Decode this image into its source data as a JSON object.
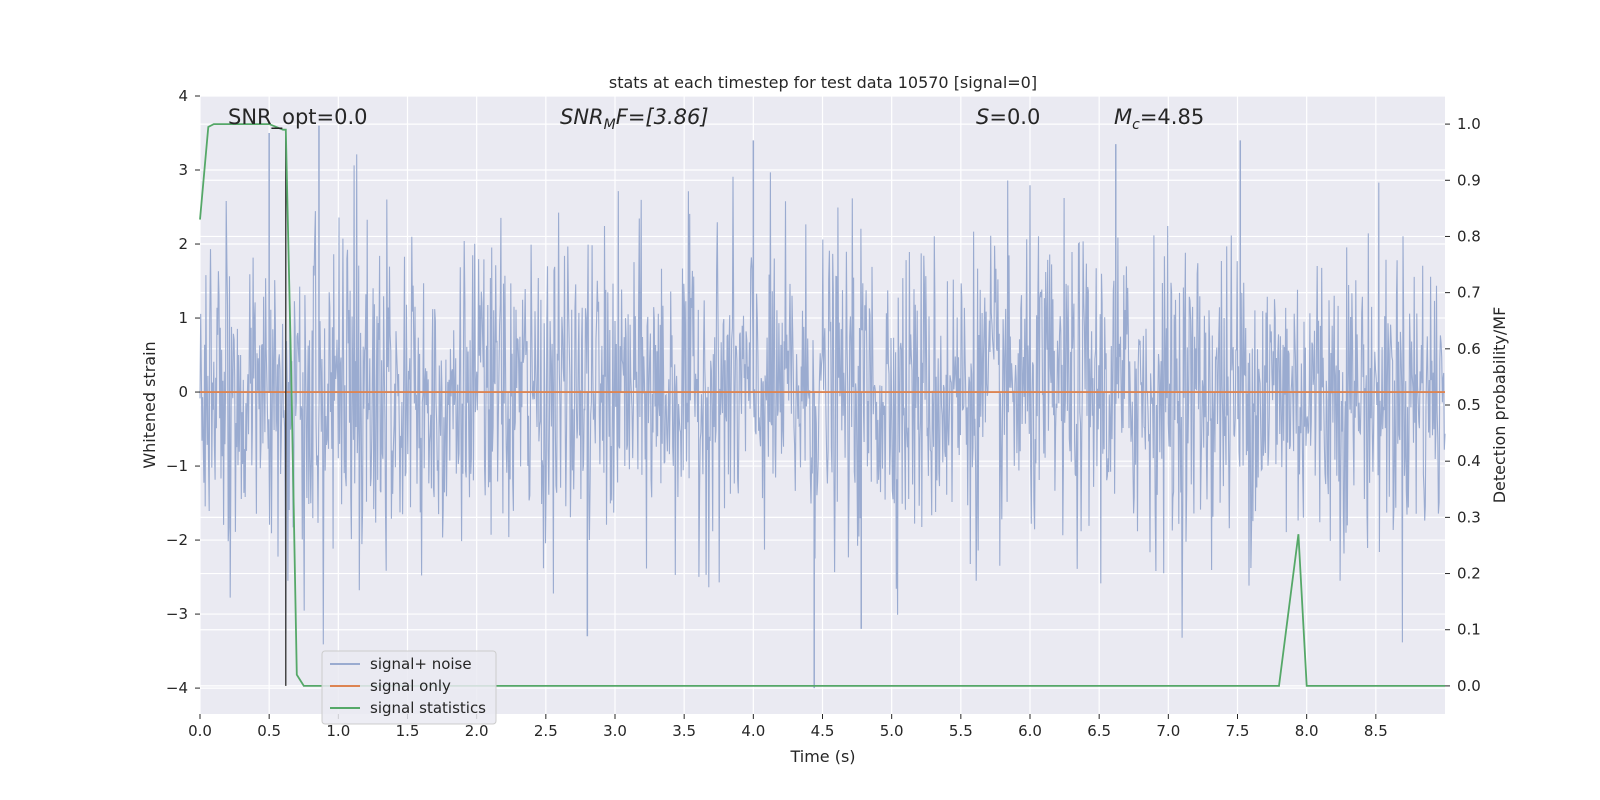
{
  "chart_data": {
    "type": "line",
    "title": "stats at each timestep for test data 10570 [signal=0]",
    "xlabel": "Time (s)",
    "ylabel": "Whitened strain",
    "y2label": "Detection probability/MF",
    "xlim": [
      0.0,
      9.0
    ],
    "ylim": [
      -4.35,
      4.0
    ],
    "y2lim": [
      -0.05,
      1.05
    ],
    "x_ticks": [
      "0.0",
      "0.5",
      "1.0",
      "1.5",
      "2.0",
      "2.5",
      "3.0",
      "3.5",
      "4.0",
      "4.5",
      "5.0",
      "5.5",
      "6.0",
      "6.5",
      "7.0",
      "7.5",
      "8.0",
      "8.5"
    ],
    "y_ticks": [
      "4",
      "3",
      "2",
      "1",
      "0",
      "−1",
      "−2",
      "−3",
      "−4"
    ],
    "y2_ticks": [
      "1.0",
      "0.9",
      "0.8",
      "0.7",
      "0.6",
      "0.5",
      "0.4",
      "0.3",
      "0.2",
      "0.1",
      "0.0"
    ],
    "grid": true,
    "legend_position": "lower-left",
    "annotations": {
      "snr_opt": "SNR_opt=0.0",
      "snr_mf_prefix": "SNR",
      "snr_mf_sub": "M",
      "snr_mf_suffix": "F=[3.86]",
      "s_sym": "S",
      "s_val": "=0.0",
      "mc_sym": "M",
      "mc_sub": "c",
      "mc_val": "=4.85"
    },
    "series": [
      {
        "name": "signal+ noise",
        "color": "#9aabd0",
        "description_values": "whitened noisy strain fluctuating roughly between -4 and 3.6",
        "envelope": {
          "mean": 0.0,
          "sigma": 1.0,
          "peak_max": 3.6,
          "peak_min": -4.0
        },
        "notable_spikes": [
          {
            "x": 0.86,
            "y": 3.6
          },
          {
            "x": 0.5,
            "y": 3.5
          },
          {
            "x": 4.44,
            "y": -4.0
          },
          {
            "x": 7.52,
            "y": 3.4
          },
          {
            "x": 6.62,
            "y": 3.35
          },
          {
            "x": 2.8,
            "y": -3.3
          },
          {
            "x": 4.78,
            "y": -3.2
          },
          {
            "x": 4.0,
            "y": 3.4
          }
        ]
      },
      {
        "name": "signal only",
        "color": "#dd8452",
        "x": [
          0.0,
          9.0
        ],
        "y": [
          0.0,
          0.0
        ]
      },
      {
        "name": "signal statistics",
        "color": "#55a868",
        "axis": "right",
        "x": [
          0.0,
          0.06,
          0.1,
          0.2,
          0.3,
          0.4,
          0.5,
          0.6,
          0.62,
          0.66,
          0.7,
          0.75,
          1.0,
          2.0,
          3.0,
          4.0,
          5.0,
          6.0,
          7.0,
          7.8,
          7.94,
          8.0,
          8.5,
          9.0
        ],
        "y": [
          0.83,
          0.995,
          1.0,
          1.0,
          1.0,
          1.0,
          1.0,
          0.99,
          0.99,
          0.55,
          0.02,
          0.0,
          0.0,
          0.0,
          0.0,
          0.0,
          0.0,
          0.0,
          0.0,
          0.0,
          0.27,
          0.0,
          0.0,
          0.0
        ]
      }
    ],
    "vertical_marker": {
      "x": 0.62,
      "color": "#3a3a3a"
    }
  }
}
